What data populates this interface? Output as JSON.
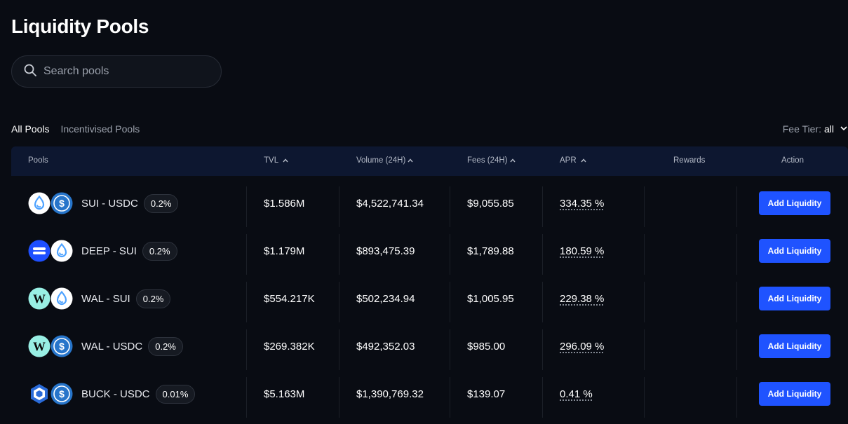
{
  "title": "Liquidity Pools",
  "search": {
    "placeholder": "Search pools"
  },
  "tabs": [
    {
      "label": "All Pools",
      "active": true
    },
    {
      "label": "Incentivised Pools",
      "active": false
    }
  ],
  "fee_tier": {
    "label": "Fee Tier:",
    "value": "all"
  },
  "columns": {
    "pools": "Pools",
    "tvl": "TVL",
    "volume": "Volume (24H)",
    "fees": "Fees (24H)",
    "apr": "APR",
    "rewards": "Rewards",
    "action": "Action"
  },
  "colors": {
    "accent": "#1f53ff",
    "background": "#090c13",
    "header": "#0d1730"
  },
  "pools": [
    {
      "coins": [
        "sui-icon",
        "usdc-icon"
      ],
      "pair": "SUI - USDC",
      "fee": "0.2%",
      "tvl": "$1.586M",
      "volume": "$4,522,741.34",
      "fees": "$9,055.85",
      "apr": "334.35 %",
      "action": "Add Liquidity"
    },
    {
      "coins": [
        "deep-icon",
        "sui-icon"
      ],
      "pair": "DEEP - SUI",
      "fee": "0.2%",
      "tvl": "$1.179M",
      "volume": "$893,475.39",
      "fees": "$1,789.88",
      "apr": "180.59 %",
      "action": "Add Liquidity"
    },
    {
      "coins": [
        "wal-icon",
        "sui-icon"
      ],
      "pair": "WAL - SUI",
      "fee": "0.2%",
      "tvl": "$554.217K",
      "volume": "$502,234.94",
      "fees": "$1,005.95",
      "apr": "229.38 %",
      "action": "Add Liquidity"
    },
    {
      "coins": [
        "wal-icon",
        "usdc-icon"
      ],
      "pair": "WAL - USDC",
      "fee": "0.2%",
      "tvl": "$269.382K",
      "volume": "$492,352.03",
      "fees": "$985.00",
      "apr": "296.09 %",
      "action": "Add Liquidity"
    },
    {
      "coins": [
        "buck-icon",
        "usdc-icon"
      ],
      "pair": "BUCK - USDC",
      "fee": "0.01%",
      "tvl": "$5.163M",
      "volume": "$1,390,769.32",
      "fees": "$139.07",
      "apr": "0.41 %",
      "action": "Add Liquidity"
    }
  ]
}
